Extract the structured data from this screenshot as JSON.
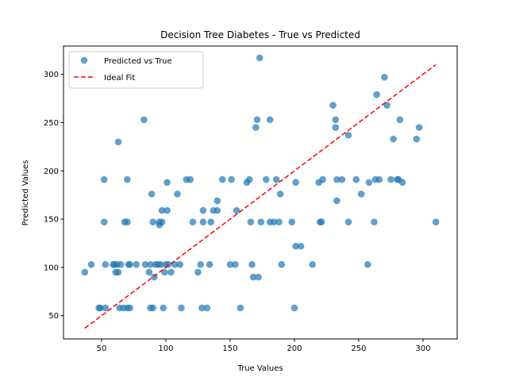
{
  "chart_data": {
    "type": "scatter",
    "title": "Decision Tree Diabetes - True vs Predicted",
    "xlabel": "True Values",
    "ylabel": "Predicted Values",
    "xlim": [
      20.4,
      326.6
    ],
    "ylim": [
      25.9,
      329.3
    ],
    "xticks": [
      50,
      100,
      150,
      200,
      250,
      300
    ],
    "yticks": [
      50,
      100,
      150,
      200,
      250,
      300
    ],
    "grid": false,
    "legend_position": "upper-left",
    "series": [
      {
        "name": "Predicted vs True",
        "kind": "scatter",
        "color": "#1f77b4",
        "points": [
          [
            37,
            95
          ],
          [
            42,
            103
          ],
          [
            48,
            58
          ],
          [
            49,
            58
          ],
          [
            52,
            191
          ],
          [
            52,
            147
          ],
          [
            53,
            103
          ],
          [
            53,
            58
          ],
          [
            59,
            103
          ],
          [
            60,
            103
          ],
          [
            61,
            95
          ],
          [
            62,
            103
          ],
          [
            63,
            95
          ],
          [
            63,
            230
          ],
          [
            64,
            58
          ],
          [
            65,
            103
          ],
          [
            67,
            58
          ],
          [
            68,
            147
          ],
          [
            70,
            147
          ],
          [
            70,
            58
          ],
          [
            70,
            191
          ],
          [
            71,
            103
          ],
          [
            72,
            103
          ],
          [
            72,
            58
          ],
          [
            77,
            103
          ],
          [
            83,
            253
          ],
          [
            84,
            103
          ],
          [
            87,
            95
          ],
          [
            88,
            103
          ],
          [
            88,
            58
          ],
          [
            89,
            176
          ],
          [
            90,
            58
          ],
          [
            90,
            147
          ],
          [
            91,
            90
          ],
          [
            92,
            103
          ],
          [
            94,
            103
          ],
          [
            95,
            144
          ],
          [
            95,
            147
          ],
          [
            96,
            103
          ],
          [
            97,
            147
          ],
          [
            97,
            159
          ],
          [
            98,
            58
          ],
          [
            99,
            95
          ],
          [
            100,
            103
          ],
          [
            101,
            159
          ],
          [
            101,
            188
          ],
          [
            102,
            103
          ],
          [
            104,
            95
          ],
          [
            107,
            103
          ],
          [
            109,
            176
          ],
          [
            111,
            103
          ],
          [
            112,
            58
          ],
          [
            116,
            191
          ],
          [
            119,
            191
          ],
          [
            121,
            147
          ],
          [
            125,
            95
          ],
          [
            127,
            103
          ],
          [
            128,
            58
          ],
          [
            129,
            159
          ],
          [
            129,
            147
          ],
          [
            132,
            58
          ],
          [
            134,
            103
          ],
          [
            135,
            147
          ],
          [
            137,
            159
          ],
          [
            140,
            169
          ],
          [
            140,
            159
          ],
          [
            144,
            191
          ],
          [
            150,
            103
          ],
          [
            151,
            191
          ],
          [
            154,
            103
          ],
          [
            155,
            159
          ],
          [
            158,
            58
          ],
          [
            163,
            188
          ],
          [
            165,
            191
          ],
          [
            166,
            147
          ],
          [
            167,
            103
          ],
          [
            168,
            90
          ],
          [
            170,
            245
          ],
          [
            171,
            253
          ],
          [
            172,
            90
          ],
          [
            173,
            317
          ],
          [
            174,
            147
          ],
          [
            178,
            191
          ],
          [
            181,
            253
          ],
          [
            181,
            147
          ],
          [
            184,
            147
          ],
          [
            186,
            191
          ],
          [
            188,
            147
          ],
          [
            189,
            176
          ],
          [
            190,
            103
          ],
          [
            198,
            147
          ],
          [
            200,
            58
          ],
          [
            201,
            122
          ],
          [
            201,
            188
          ],
          [
            205,
            122
          ],
          [
            214,
            103
          ],
          [
            219,
            188
          ],
          [
            220,
            147
          ],
          [
            221,
            147
          ],
          [
            222,
            191
          ],
          [
            230,
            268
          ],
          [
            232,
            245
          ],
          [
            232,
            253
          ],
          [
            233,
            169
          ],
          [
            233,
            191
          ],
          [
            237,
            191
          ],
          [
            242,
            237
          ],
          [
            242,
            147
          ],
          [
            248,
            191
          ],
          [
            252,
            176
          ],
          [
            257,
            103
          ],
          [
            258,
            188
          ],
          [
            262,
            147
          ],
          [
            263,
            191
          ],
          [
            264,
            279
          ],
          [
            266,
            191
          ],
          [
            270,
            297
          ],
          [
            272,
            268
          ],
          [
            275,
            191
          ],
          [
            277,
            233
          ],
          [
            280,
            191
          ],
          [
            281,
            191
          ],
          [
            282,
            253
          ],
          [
            284,
            188
          ],
          [
            295,
            233
          ],
          [
            297,
            245
          ],
          [
            310,
            147
          ]
        ]
      },
      {
        "name": "Ideal Fit",
        "kind": "line",
        "color": "#ff0000",
        "dash": "dashed",
        "points": [
          [
            37,
            37
          ],
          [
            310,
            310
          ]
        ]
      }
    ]
  }
}
